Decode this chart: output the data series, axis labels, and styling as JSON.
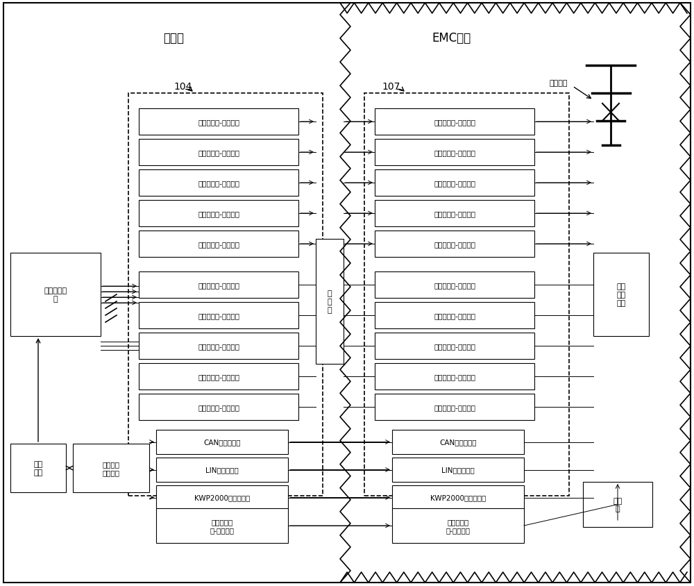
{
  "bg_color": "#ffffff",
  "border_color": "#000000",
  "box_color": "#ffffff",
  "text_color": "#000000",
  "left_room_label": "控制室",
  "right_room_label": "EMC暗室",
  "label_104": "104",
  "label_107": "107",
  "antenna_label": "发射天线",
  "left_boxes_upper": [
    "模拟信号光-电转换器",
    "位移信号光-电转换器",
    "音频信号光-电转换器",
    "视频信号光-电转换器",
    "脉冲信号光-电转换器"
  ],
  "left_boxes_lower": [
    "模拟信号电-光转换器",
    "位移信号电-光转换器",
    "音频信号电-光转换器",
    "视频信号电-光转换器",
    "脉冲信号电-光转换器"
  ],
  "right_boxes_upper": [
    "模拟信号电-光转换器",
    "位移信号电-光转换器",
    "音频信号电-光转换器",
    "视频信号电-光转换器",
    "脉冲信号电-光转换器"
  ],
  "right_boxes_lower": [
    "模拟信号光-电转换器",
    "位移信号光-电转换器",
    "音频信号光-电转换器",
    "视频信号光-电转换器",
    "脉冲信号光-电转换器"
  ],
  "protocol_boxes": [
    "CAN光电转换器",
    "LIN光电转换器",
    "KWP2000光电转换器"
  ],
  "protocol_boxes_right": [
    "CAN光电转换器",
    "LIN光电转换器",
    "KWP2000光电转换器"
  ],
  "av_box_left": "音视频信号\n光-电转换器",
  "av_box_right": "音视频信号\n电-光转换器",
  "signal_device": "信号模拟设\n备",
  "control_host": "控制\n主机",
  "protocol_module": "协议信号\n收发模块",
  "interface_board": "接\n口\n板",
  "dut": "待测\n电控\n单元",
  "camera": "摄像\n机"
}
